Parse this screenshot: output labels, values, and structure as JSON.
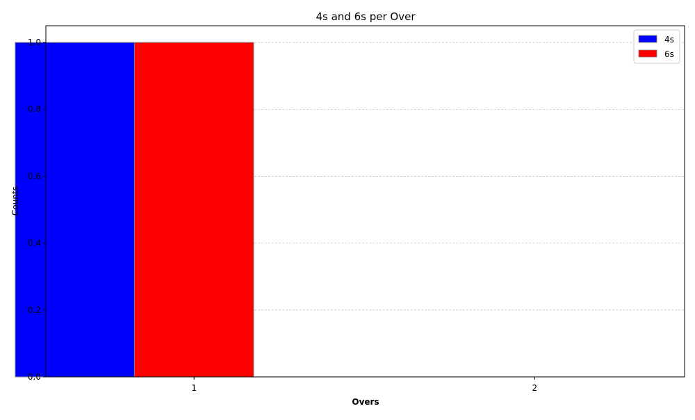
{
  "chart_data": {
    "type": "bar",
    "title": "4s and 6s per Over",
    "xlabel": "Overs",
    "ylabel": "Counts",
    "categories": [
      "1",
      "2"
    ],
    "series": [
      {
        "name": "4s",
        "values": [
          1,
          0
        ],
        "color": "#0000ff"
      },
      {
        "name": "6s",
        "values": [
          1,
          0
        ],
        "color": "#ff0000"
      }
    ],
    "yticks": [
      "0.0",
      "0.2",
      "0.4",
      "0.6",
      "0.8",
      "1.0"
    ],
    "ylim": [
      0,
      1.05
    ],
    "grid": "y-dashed",
    "legend_position": "top-right",
    "bar_edge_color": "#808080"
  }
}
